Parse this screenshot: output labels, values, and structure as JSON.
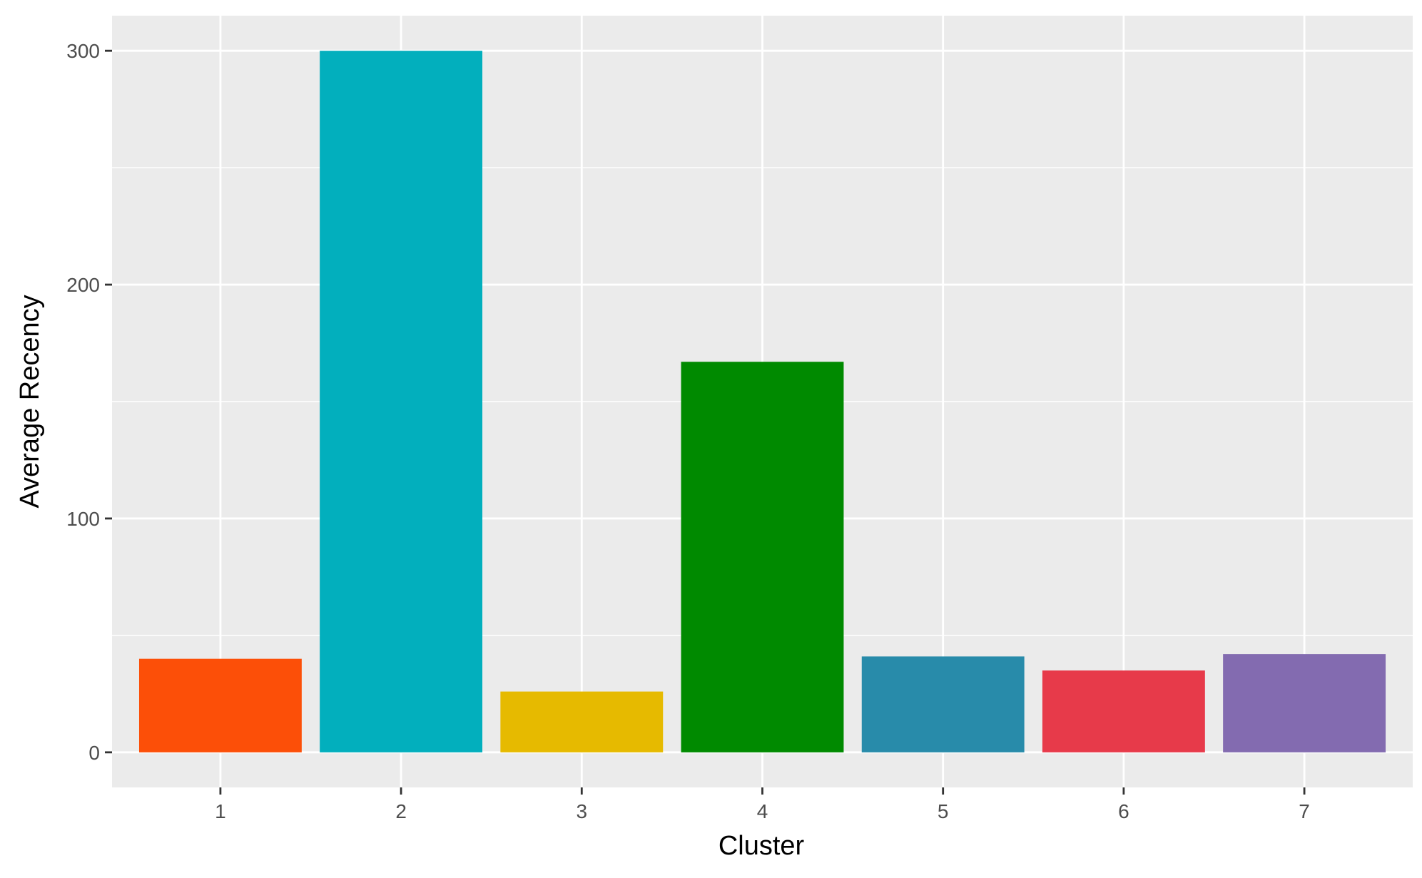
{
  "chart_data": {
    "type": "bar",
    "title": "",
    "xlabel": "Cluster",
    "ylabel": "Average  Recency",
    "categories": [
      "1",
      "2",
      "3",
      "4",
      "5",
      "6",
      "7"
    ],
    "values": [
      40,
      300,
      26,
      167,
      41,
      35,
      42
    ],
    "bar_colors": [
      "#FC4F08",
      "#02AFBD",
      "#E6BA00",
      "#008A00",
      "#288BAA",
      "#E73A4A",
      "#836BB0"
    ],
    "ylim": [
      -15,
      315
    ],
    "yticks": [
      0,
      100,
      200,
      300
    ],
    "y_minor_ticks": [
      50,
      150,
      250
    ],
    "grid": true,
    "panel_background": "#EBEBEB",
    "legend": "none"
  }
}
